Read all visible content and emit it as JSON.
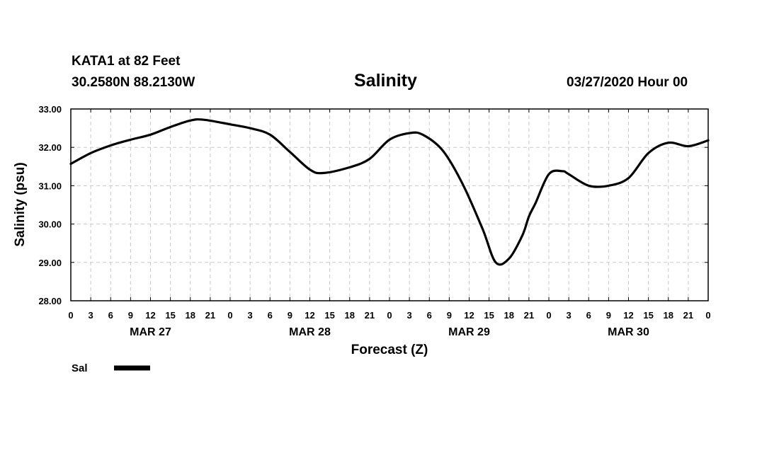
{
  "header": {
    "station": "KATA1 at 82 Feet",
    "coords": "30.2580N 88.2130W",
    "run": "03/27/2020 Hour 00"
  },
  "chart_data": {
    "type": "line",
    "title": "Salinity",
    "xlabel": "Forecast (Z)",
    "ylabel": "Salinity (psu)",
    "ylim": [
      28,
      33
    ],
    "yticks": [
      "28.00",
      "29.00",
      "30.00",
      "31.00",
      "32.00",
      "33.00"
    ],
    "xlim_hours": [
      0,
      96
    ],
    "xtick_step_hours": 3,
    "xticks": [
      "0",
      "3",
      "6",
      "9",
      "12",
      "15",
      "18",
      "21",
      "0",
      "3",
      "6",
      "9",
      "12",
      "15",
      "18",
      "21",
      "0",
      "3",
      "6",
      "9",
      "12",
      "15",
      "18",
      "21",
      "0",
      "3",
      "6",
      "9",
      "12",
      "15",
      "18",
      "21",
      "0"
    ],
    "day_labels": [
      {
        "label": "MAR 27",
        "hour": 12
      },
      {
        "label": "MAR 28",
        "hour": 36
      },
      {
        "label": "MAR 29",
        "hour": 60
      },
      {
        "label": "MAR 30",
        "hour": 84
      }
    ],
    "grid": true,
    "legend_position": "bottom-left",
    "line_color": "#000000",
    "series": [
      {
        "name": "Sal",
        "x": [
          0,
          3,
          6,
          9,
          12,
          15,
          18,
          20,
          24,
          27,
          30,
          33,
          36,
          38,
          42,
          45,
          48,
          51,
          53,
          56,
          59,
          62,
          64,
          66,
          68,
          69,
          70,
          72,
          74,
          75,
          78,
          81,
          84,
          87,
          90,
          93,
          96
        ],
        "y": [
          31.57,
          31.85,
          32.05,
          32.2,
          32.33,
          32.53,
          32.7,
          32.72,
          32.6,
          32.5,
          32.33,
          31.88,
          31.42,
          31.33,
          31.48,
          31.7,
          32.2,
          32.37,
          32.33,
          31.92,
          31.05,
          29.88,
          29.0,
          29.1,
          29.7,
          30.2,
          30.55,
          31.3,
          31.38,
          31.3,
          31.0,
          31.0,
          31.2,
          31.85,
          32.12,
          32.03,
          32.18
        ]
      }
    ]
  }
}
